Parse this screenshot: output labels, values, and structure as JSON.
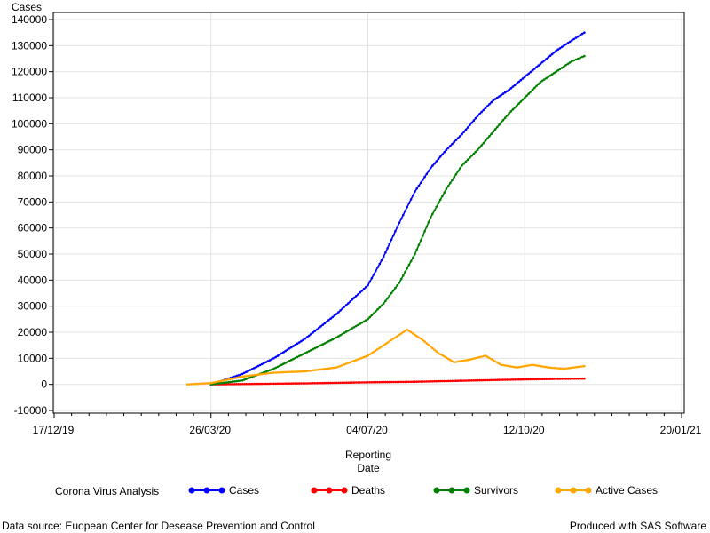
{
  "footnote": {
    "left": "Data source: Euopean Center for Desease Prevention and Control",
    "right": "Produced with SAS Software"
  },
  "chart_data": {
    "type": "line",
    "title": "",
    "ylabel": "Cases",
    "xlabel_lines": [
      "Reporting",
      "Date"
    ],
    "x_ticks": [
      "17/12/19",
      "26/03/20",
      "04/07/20",
      "12/10/20",
      "20/01/21"
    ],
    "y_ticks": [
      "-10000",
      "0",
      "10000",
      "20000",
      "30000",
      "40000",
      "50000",
      "60000",
      "70000",
      "80000",
      "90000",
      "100000",
      "110000",
      "120000",
      "130000",
      "140000"
    ],
    "xlim": [
      "17/12/19",
      "20/01/21"
    ],
    "ylim": [
      -10000,
      140000
    ],
    "grid": true,
    "legend": {
      "title": "Corona Virus Analysis",
      "position": "bottom"
    },
    "series": [
      {
        "name": "Cases",
        "color": "#0000ff",
        "points": [
          [
            "26/03/20",
            0
          ],
          [
            "15/04/20",
            4000
          ],
          [
            "05/05/20",
            10000
          ],
          [
            "25/05/20",
            17500
          ],
          [
            "14/06/20",
            27000
          ],
          [
            "04/07/20",
            38000
          ],
          [
            "14/07/20",
            49000
          ],
          [
            "24/07/20",
            62000
          ],
          [
            "03/08/20",
            74000
          ],
          [
            "13/08/20",
            83000
          ],
          [
            "23/08/20",
            90000
          ],
          [
            "02/09/20",
            96000
          ],
          [
            "12/09/20",
            103000
          ],
          [
            "22/09/20",
            109000
          ],
          [
            "02/10/20",
            113000
          ],
          [
            "12/10/20",
            118000
          ],
          [
            "22/10/20",
            123000
          ],
          [
            "01/11/20",
            128000
          ],
          [
            "11/11/20",
            132000
          ],
          [
            "19/11/20",
            135000
          ]
        ]
      },
      {
        "name": "Deaths",
        "color": "#ff0000",
        "points": [
          [
            "26/03/20",
            0
          ],
          [
            "25/04/20",
            200
          ],
          [
            "25/05/20",
            400
          ],
          [
            "24/06/20",
            700
          ],
          [
            "04/07/20",
            800
          ],
          [
            "03/08/20",
            1000
          ],
          [
            "02/09/20",
            1400
          ],
          [
            "02/10/20",
            1800
          ],
          [
            "12/10/20",
            1900
          ],
          [
            "01/11/20",
            2100
          ],
          [
            "19/11/20",
            2200
          ]
        ]
      },
      {
        "name": "Survivors",
        "color": "#008000",
        "points": [
          [
            "26/03/20",
            0
          ],
          [
            "15/04/20",
            1500
          ],
          [
            "05/05/20",
            6000
          ],
          [
            "25/05/20",
            12000
          ],
          [
            "14/06/20",
            18000
          ],
          [
            "04/07/20",
            25000
          ],
          [
            "14/07/20",
            31000
          ],
          [
            "24/07/20",
            39000
          ],
          [
            "03/08/20",
            50000
          ],
          [
            "13/08/20",
            64000
          ],
          [
            "23/08/20",
            75000
          ],
          [
            "02/09/20",
            84000
          ],
          [
            "12/09/20",
            90000
          ],
          [
            "22/09/20",
            97000
          ],
          [
            "02/10/20",
            104000
          ],
          [
            "12/10/20",
            110000
          ],
          [
            "22/10/20",
            116000
          ],
          [
            "01/11/20",
            120000
          ],
          [
            "11/11/20",
            124000
          ],
          [
            "19/11/20",
            126000
          ]
        ]
      },
      {
        "name": "Active Cases",
        "color": "#ffa500",
        "points": [
          [
            "11/03/20",
            0
          ],
          [
            "26/03/20",
            500
          ],
          [
            "15/04/20",
            3000
          ],
          [
            "05/05/20",
            4500
          ],
          [
            "25/05/20",
            5000
          ],
          [
            "14/06/20",
            6500
          ],
          [
            "04/07/20",
            11000
          ],
          [
            "14/07/20",
            15000
          ],
          [
            "24/07/20",
            19000
          ],
          [
            "29/07/20",
            21000
          ],
          [
            "08/08/20",
            17000
          ],
          [
            "18/08/20",
            12000
          ],
          [
            "28/08/20",
            8500
          ],
          [
            "07/09/20",
            9500
          ],
          [
            "17/09/20",
            11000
          ],
          [
            "27/09/20",
            7500
          ],
          [
            "07/10/20",
            6500
          ],
          [
            "17/10/20",
            7500
          ],
          [
            "27/10/20",
            6500
          ],
          [
            "06/11/20",
            6000
          ],
          [
            "19/11/20",
            7000
          ]
        ]
      }
    ]
  }
}
